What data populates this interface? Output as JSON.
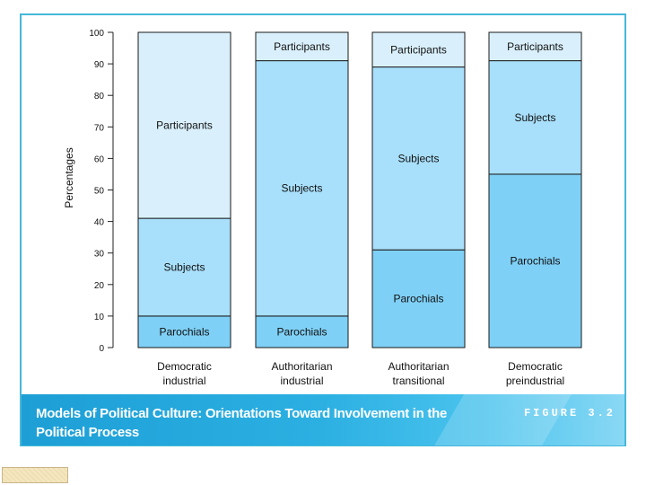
{
  "chart_data": {
    "type": "bar",
    "stacked": true,
    "categories": [
      [
        "Democratic",
        "industrial"
      ],
      [
        "Authoritarian",
        "industrial"
      ],
      [
        "Authoritarian",
        "transitional"
      ],
      [
        "Democratic",
        "preindustrial"
      ]
    ],
    "series": [
      {
        "name": "Parochials",
        "values": [
          10,
          10,
          31,
          55
        ]
      },
      {
        "name": "Subjects",
        "values": [
          31,
          81,
          58,
          36
        ]
      },
      {
        "name": "Participants",
        "values": [
          59,
          9,
          11,
          9
        ]
      }
    ],
    "segment_labels": [
      [
        "Parochials",
        "Subjects",
        "Participants"
      ],
      [
        "Parochials",
        "Subjects",
        "Participants"
      ],
      [
        "Parochials",
        "Subjects",
        "Participants"
      ],
      [
        "Parochials",
        "Subjects",
        "Participants"
      ]
    ],
    "ylabel": "Percentages",
    "xlabel": "",
    "ylim": [
      0,
      100
    ],
    "yticks": [
      0,
      10,
      20,
      30,
      40,
      50,
      60,
      70,
      80,
      90,
      100
    ],
    "grid": false,
    "colors": {
      "Parochials": "#7fd0f6",
      "Subjects": "#a8dffa",
      "Participants": "#d9f0fc",
      "edge": "#1a1a1a"
    }
  },
  "caption": {
    "line1": "Models of Political Culture: Orientations Toward Involvement in the",
    "line2": "Political Process",
    "figure_label": "FIGURE 3.2"
  }
}
